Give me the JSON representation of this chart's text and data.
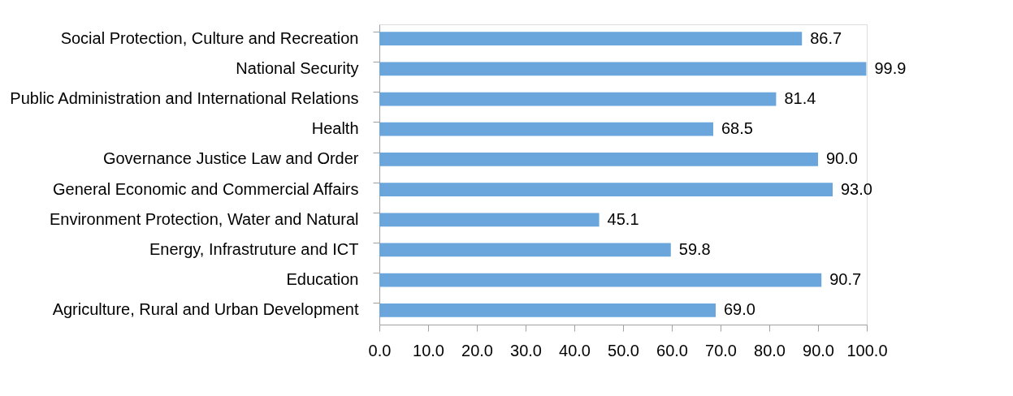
{
  "chart_data": {
    "type": "bar",
    "orientation": "horizontal",
    "categories": [
      "Social Protection, Culture and Recreation",
      "National Security",
      "Public Administration and International Relations",
      "Health",
      "Governance Justice Law and Order",
      "General Economic and Commercial Affairs",
      "Environment Protection, Water and Natural",
      "Energy, Infrastruture and ICT",
      "Education",
      "Agriculture, Rural and Urban Development"
    ],
    "values": [
      86.7,
      99.9,
      81.4,
      68.5,
      90.0,
      93.0,
      45.1,
      59.8,
      90.7,
      69.0
    ],
    "value_labels": [
      "86.7",
      "99.9",
      "81.4",
      "68.5",
      "90.0",
      "93.0",
      "45.1",
      "59.8",
      "90.7",
      "69.0"
    ],
    "color": "#6aa6dc",
    "xlim": [
      0,
      100
    ],
    "xticks": [
      {
        "value": 0,
        "label": "0.0"
      },
      {
        "value": 10,
        "label": "10.0"
      },
      {
        "value": 20,
        "label": "20.0"
      },
      {
        "value": 30,
        "label": "30.0"
      },
      {
        "value": 40,
        "label": "40.0"
      },
      {
        "value": 50,
        "label": "50.0"
      },
      {
        "value": 60,
        "label": "60.0"
      },
      {
        "value": 70,
        "label": "70.0"
      },
      {
        "value": 80,
        "label": "80.0"
      },
      {
        "value": 90,
        "label": "90.0"
      },
      {
        "value": 100,
        "label": "100.0"
      }
    ]
  }
}
